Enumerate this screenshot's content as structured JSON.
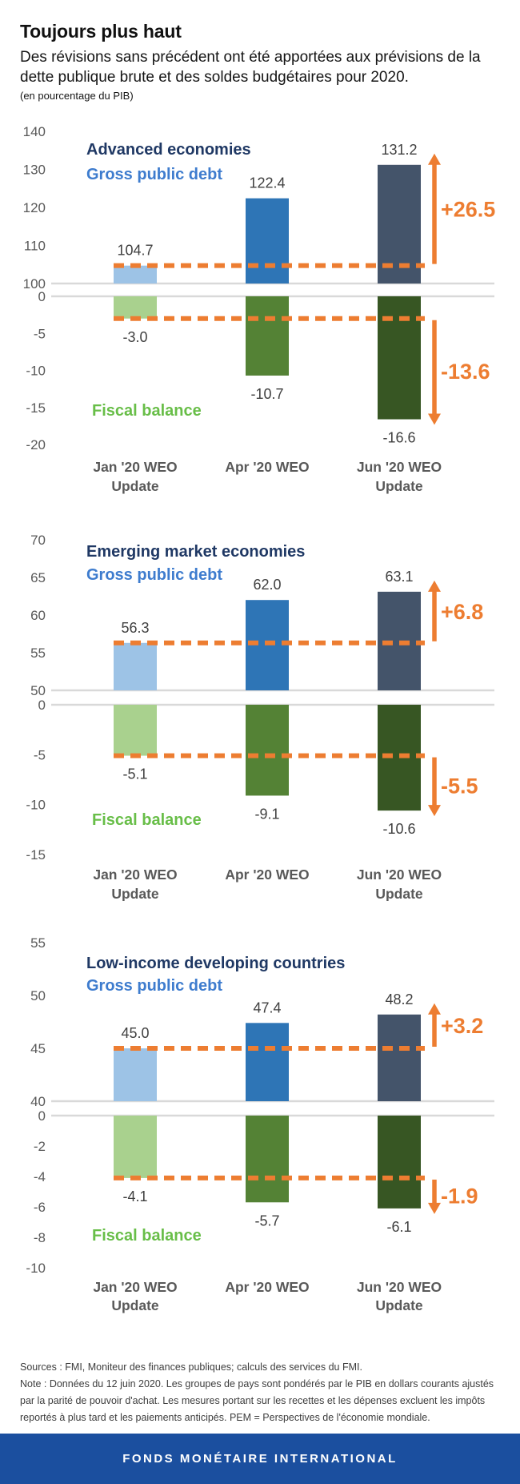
{
  "header": {
    "title": "Toujours plus haut",
    "subtitle": "Des révisions sans précédent ont été apportées aux prévisions de la dette publique brute et des soldes budgétaires pour 2020.",
    "unit_note": "(en pourcentage du PIB)"
  },
  "chart_data": [
    {
      "type": "bar",
      "region_title": "Advanced economies",
      "debt_series_label": "Gross public debt",
      "fiscal_series_label": "Fiscal balance",
      "categories": [
        "Jan '20 WEO\nUpdate",
        "Apr '20 WEO",
        "Jun '20 WEO\nUpdate"
      ],
      "series": [
        {
          "name": "Gross public debt",
          "values": [
            104.7,
            122.4,
            131.2
          ]
        },
        {
          "name": "Fiscal balance",
          "values": [
            -3.0,
            -10.7,
            -16.6
          ]
        }
      ],
      "debt_change_label": "+26.5",
      "fiscal_change_label": "-13.6",
      "debt_axis": {
        "min": 100,
        "max": 140,
        "ticks": [
          140,
          130,
          120,
          110,
          100
        ]
      },
      "fiscal_axis": {
        "min": -20,
        "max": 0,
        "ticks": [
          0,
          -5,
          -10,
          -15,
          -20
        ]
      }
    },
    {
      "type": "bar",
      "region_title": "Emerging market economies",
      "debt_series_label": "Gross public debt",
      "fiscal_series_label": "Fiscal balance",
      "categories": [
        "Jan '20 WEO\nUpdate",
        "Apr '20 WEO",
        "Jun '20 WEO\nUpdate"
      ],
      "series": [
        {
          "name": "Gross public debt",
          "values": [
            56.3,
            62.0,
            63.1
          ]
        },
        {
          "name": "Fiscal balance",
          "values": [
            -5.1,
            -9.1,
            -10.6
          ]
        }
      ],
      "debt_change_label": "+6.8",
      "fiscal_change_label": "-5.5",
      "debt_axis": {
        "min": 50,
        "max": 70,
        "ticks": [
          70,
          65,
          60,
          55,
          50
        ]
      },
      "fiscal_axis": {
        "min": -15,
        "max": 0,
        "ticks": [
          0,
          -5,
          -10,
          -15
        ]
      }
    },
    {
      "type": "bar",
      "region_title": "Low-income developing countries",
      "debt_series_label": "Gross public debt",
      "fiscal_series_label": "Fiscal balance",
      "categories": [
        "Jan '20 WEO\nUpdate",
        "Apr '20 WEO",
        "Jun '20 WEO\nUpdate"
      ],
      "series": [
        {
          "name": "Gross public debt",
          "values": [
            45.0,
            47.4,
            48.2
          ]
        },
        {
          "name": "Fiscal balance",
          "values": [
            -4.1,
            -5.7,
            -6.1
          ]
        }
      ],
      "debt_change_label": "+3.2",
      "fiscal_change_label": "-1.9",
      "debt_axis": {
        "min": 40,
        "max": 55,
        "ticks": [
          55,
          50,
          45,
          40
        ]
      },
      "fiscal_axis": {
        "min": -10,
        "max": 0,
        "ticks": [
          0,
          -2,
          -4,
          -6,
          -8,
          -10
        ]
      }
    }
  ],
  "colors": {
    "debt_bars": [
      "#9DC3E6",
      "#2E75B6",
      "#44546A"
    ],
    "fiscal_bars": [
      "#A9D18E",
      "#548235",
      "#375623"
    ],
    "accent_orange": "#ED7D31",
    "region_title": "#1F3864",
    "debt_label_blue": "#3E7CCE",
    "fiscal_label_green": "#68BE48",
    "axis_text": "#595959",
    "value_text": "#404040",
    "gridline": "#D9D9D9",
    "banner_blue": "#1B4F9F"
  },
  "footer": {
    "sources": "Sources : FMI, Moniteur des finances publiques; calculs des services du FMI.",
    "note": "Note : Données du 12 juin 2020. Les groupes de pays sont pondérés par le PIB en dollars courants ajustés par la parité de pouvoir d'achat. Les mesures portant sur les recettes et les dépenses excluent les impôts reportés à plus tard et les paiements anticipés. PEM = Perspectives de l'économie mondiale.",
    "banner": "FONDS MONÉTAIRE INTERNATIONAL"
  }
}
